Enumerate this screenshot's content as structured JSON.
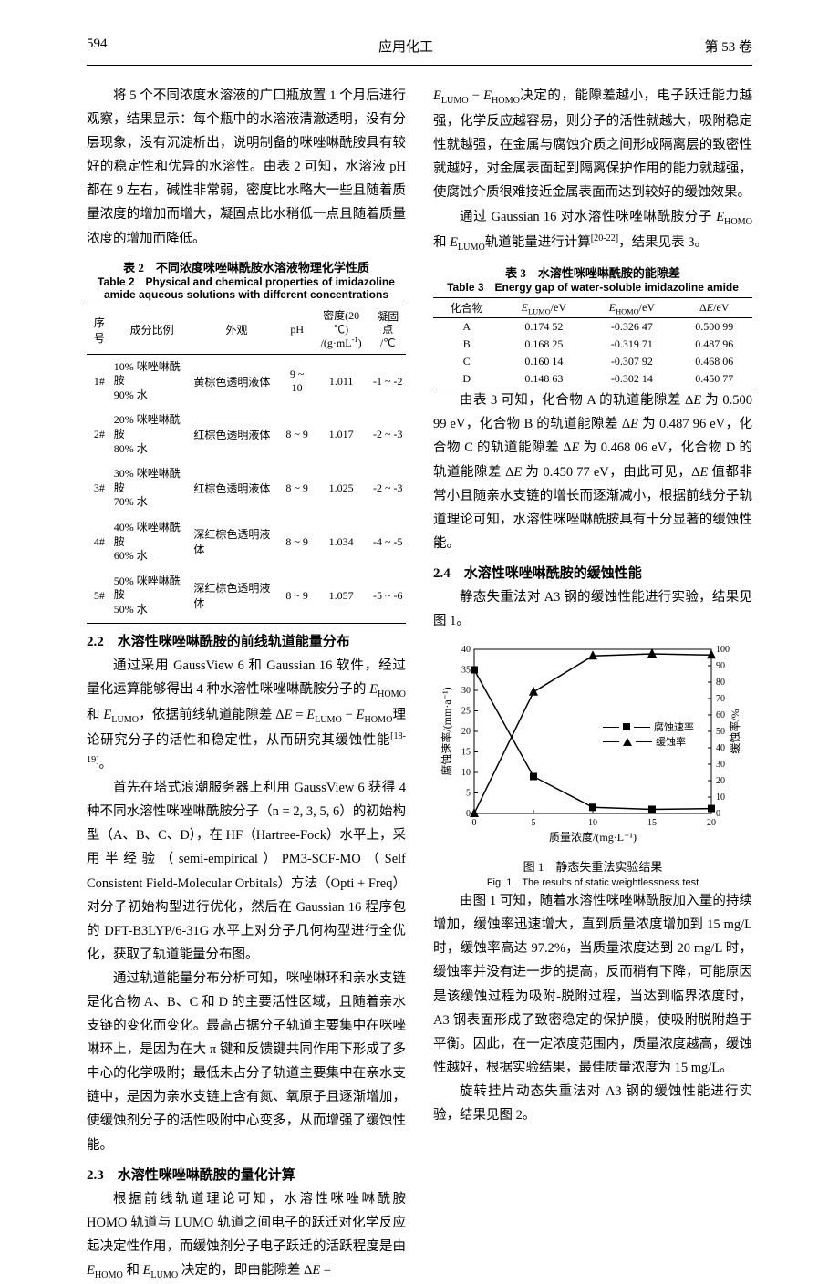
{
  "header": {
    "page_number": "594",
    "journal_title": "应用化工",
    "volume_label": "第 53 卷"
  },
  "left_col": {
    "para1": "将 5 个不同浓度水溶液的广口瓶放置 1 个月后进行观察，结果显示：每个瓶中的水溶液清澈透明，没有分层现象，没有沉淀析出，说明制备的咪唑啉酰胺具有较好的稳定性和优异的水溶性。由表 2 可知，水溶液 pH 都在 9 左右，碱性非常弱，密度比水略大一些且随着质量浓度的增加而增大，凝固点比水稍低一点且随着质量浓度的增加而降低。",
    "table2_caption_cn": "表 2　不同浓度咪唑啉酰胺水溶液物理化学性质",
    "table2_caption_en": "Table 2　Physical and chemical properties of imidazoline amide aqueous solutions with different concentrations",
    "table2": {
      "headers": [
        "序号",
        "成分比例",
        "外观",
        "pH",
        "密度(20 ℃) /(g·mL⁻¹)",
        "凝固点 /℃"
      ],
      "rows": [
        [
          "1#",
          "10% 咪唑啉酰胺 90% 水",
          "黄棕色透明液体",
          "9 ~ 10",
          "1.011",
          "-1 ~ -2"
        ],
        [
          "2#",
          "20% 咪唑啉酰胺 80% 水",
          "红棕色透明液体",
          "8 ~ 9",
          "1.017",
          "-2 ~ -3"
        ],
        [
          "3#",
          "30% 咪唑啉酰胺 70% 水",
          "红棕色透明液体",
          "8 ~ 9",
          "1.025",
          "-2 ~ -3"
        ],
        [
          "4#",
          "40% 咪唑啉酰胺 60% 水",
          "深红棕色透明液体",
          "8 ~ 9",
          "1.034",
          "-4 ~ -5"
        ],
        [
          "5#",
          "50% 咪唑啉酰胺 50% 水",
          "深红棕色透明液体",
          "8 ~ 9",
          "1.057",
          "-5 ~ -6"
        ]
      ]
    },
    "heading_2_2": "2.2　水溶性咪唑啉酰胺的前线轨道能量分布",
    "para2": "通过采用 GaussView 6 和 Gaussian 16 软件，经过量化运算能够得出 4 种水溶性咪唑啉酰胺分子的 E_HOMO 和 E_LUMO，依据前线轨道能隙差 ΔE = E_LUMO − E_HOMO 理论研究分子的活性和稳定性，从而研究其缓蚀性能[18-19]。",
    "para3": "首先在塔式浪潮服务器上利用 GaussView 6 获得 4 种不同水溶性咪唑啉酰胺分子（n = 2, 3, 5, 6）的初始构型（A、B、C、D），在 HF（Hartree-Fock）水平上，采用半经验（semi-empirical）PM3-SCF-MO（Self Consistent Field-Molecular Orbitals）方法（Opti + Freq）对分子初始构型进行优化，然后在 Gaussian 16 程序包的 DFT-B3LYP/6-31G 水平上对分子几何构型进行全优化，获取了轨道能量分布图。",
    "para4": "通过轨道能量分布分析可知，咪唑啉环和亲水支链是化合物 A、B、C 和 D 的主要活性区域，且随着亲水支链的变化而变化。最高占据分子轨道主要集中在咪唑啉环上，是因为在大 π 键和反馈键共同作用下形成了多中心的化学吸附；最低未占分子轨道主要集中在亲水支链中，是因为亲水支链上含有氮、氧原子且逐渐增加，使缓蚀剂分子的活性吸附中心变多，从而增强了缓蚀性能。",
    "heading_2_3": "2.3　水溶性咪唑啉酰胺的量化计算",
    "para5": "根据前线轨道理论可知，水溶性咪唑啉酰胺 HOMO 轨道与 LUMO 轨道之间电子的跃迁对化学反应起决定性作用，而缓蚀剂分子电子跃迁的活跃程度是由 E_HOMO 和 E_LUMO 决定的，即由能隙差 ΔE ="
  },
  "right_col": {
    "para1": "E_LUMO − E_HOMO 决定的，能隙差越小，电子跃迁能力越强，化学反应越容易，则分子的活性就越大，吸附稳定性就越强，在金属与腐蚀介质之间形成隔离层的致密性就越好，对金属表面起到隔离保护作用的能力就越强，使腐蚀介质很难接近金属表面而达到较好的缓蚀效果。",
    "para2": "通过 Gaussian 16 对水溶性咪唑啉酰胺分子 E_HOMO 和 E_LUMO 轨道能量进行计算[20-22]，结果见表 3。",
    "table3_caption_cn": "表 3　水溶性咪唑啉酰胺的能隙差",
    "table3_caption_en": "Table 3　Energy gap of water-soluble imidazoline amide",
    "table3": {
      "headers": [
        "化合物",
        "E_LUMO /eV",
        "E_HOMO /eV",
        "ΔE/eV"
      ],
      "rows": [
        [
          "A",
          "0.174 52",
          "-0.326 47",
          "0.500 99"
        ],
        [
          "B",
          "0.168 25",
          "-0.319 71",
          "0.487 96"
        ],
        [
          "C",
          "0.160 14",
          "-0.307 92",
          "0.468 06"
        ],
        [
          "D",
          "0.148 63",
          "-0.302 14",
          "0.450 77"
        ]
      ]
    },
    "para3": "由表 3 可知，化合物 A 的轨道能隙差 ΔE 为 0.500 99 eV，化合物 B 的轨道能隙差 ΔE 为 0.487 96 eV，化合物 C 的轨道能隙差 ΔE 为 0.468 06 eV，化合物 D 的轨道能隙差 ΔE 为 0.450 77 eV，由此可见，ΔE 值都非常小且随亲水支链的增长而逐渐减小，根据前线分子轨道理论可知，水溶性咪唑啉酰胺具有十分显著的缓蚀性能。",
    "heading_2_4": "2.4　水溶性咪唑啉酰胺的缓蚀性能",
    "para4": "静态失重法对 A3 钢的缓蚀性能进行实验，结果见图 1。",
    "figure1": {
      "type": "dual-axis-line",
      "x_label": "质量浓度/(mg·L⁻¹)",
      "y1_label": "腐蚀速率/(mm·a⁻¹)",
      "y2_label": "缓蚀率/%",
      "xlim": [
        0,
        20
      ],
      "y1_lim": [
        0,
        40
      ],
      "y2_lim": [
        0,
        100
      ],
      "xtick_step": 5,
      "y1_tick_step": 5,
      "y2_tick_step": 10,
      "x_values": [
        0,
        5,
        10,
        15,
        20
      ],
      "y1_values": [
        35,
        9,
        1.5,
        1,
        1.2
      ],
      "y2_values": [
        0,
        74,
        96,
        97.2,
        96.5
      ],
      "series1_name": "腐蚀速率",
      "series2_name": "缓蚀率",
      "series1_marker": "square",
      "series2_marker": "triangle",
      "line_color": "#000000",
      "marker_fill": "#000000",
      "background": "#ffffff",
      "caption_cn": "图 1　静态失重法实验结果",
      "caption_en": "Fig. 1　The results of static weightlessness test"
    },
    "para5": "由图 1 可知，随着水溶性咪唑啉酰胺加入量的持续增加，缓蚀率迅速增大，直到质量浓度增加到 15 mg/L 时，缓蚀率高达 97.2%，当质量浓度达到 20 mg/L 时，缓蚀率并没有进一步的提高，反而稍有下降，可能原因是该缓蚀过程为吸附-脱附过程，当达到临界浓度时，A3 钢表面形成了致密稳定的保护膜，使吸附脱附趋于平衡。因此，在一定浓度范围内，质量浓度越高，缓蚀性越好，根据实验结果，最佳质量浓度为 15 mg/L。",
    "para6": "旋转挂片动态失重法对 A3 钢的缓蚀性能进行实验，结果见图 2。"
  }
}
